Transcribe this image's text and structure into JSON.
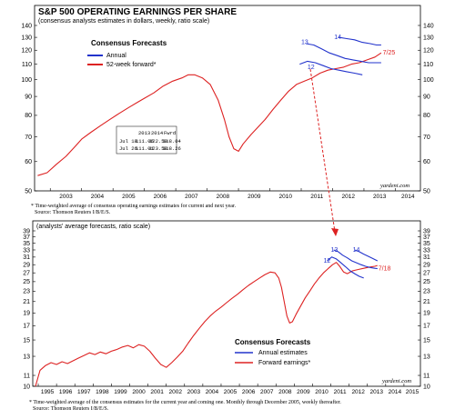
{
  "colors": {
    "annual": "#2233cc",
    "forward": "#dd2222",
    "arrow": "#dd2222",
    "frame": "#000000"
  },
  "top_chart": {
    "title": "S&P 500 OPERATING EARNINGS PER SHARE",
    "subtitle": "(consensus analysts estimates in dollars, weekly, ratio scale)",
    "legend_title": "Consensus Forecasts",
    "legend_annual": "Annual",
    "legend_forward": "52-week forward*",
    "credit": "yardeni.com",
    "table": {
      "header": [
        "2013",
        "2014",
        "Fwrd"
      ],
      "rows": [
        [
          "Jul 18",
          "111.06",
          "122.59",
          "118.04"
        ],
        [
          "Jul 26",
          "111.01",
          "123.58",
          "118.26"
        ]
      ]
    },
    "footnote_1": "* Time-weighted average of consensus operating earnings estimates for current and next year.",
    "footnote_2": "Source: Thomson Reuters I/B/E/S."
  },
  "bottom_chart": {
    "subtitle": "(analysts' average forecasts, ratio scale)",
    "legend_title": "Consensus Forecasts",
    "legend_annual": "Annual estimates",
    "legend_forward": "Forward earnings*",
    "credit": "yardeni.com",
    "footnote_1": "* Time-weighted average of the consensus estimates for the current year and coming one. Monthly through December 2005, weekly thereafter.",
    "footnote_2": "Source: Thomson Reuters I/B/E/S."
  },
  "chart_data": [
    {
      "type": "line",
      "title": "S&P 500 OPERATING EARNINGS PER SHARE",
      "subtitle": "(consensus analysts estimates in dollars, weekly, ratio scale)",
      "scale": "log",
      "xlim": [
        2002.5,
        2014.8
      ],
      "ylim": [
        50,
        140
      ],
      "y_ticks": [
        50,
        60,
        70,
        80,
        90,
        100,
        110,
        120,
        130,
        140
      ],
      "x_tick_labels": [
        "2003",
        "2004",
        "2005",
        "2006",
        "2007",
        "2008",
        "2009",
        "2010",
        "2011",
        "2012",
        "2013",
        "2014"
      ],
      "annotations": [
        {
          "text": "12",
          "series": "Annual",
          "x": 2011.2,
          "y": 108
        },
        {
          "text": "13",
          "series": "Annual",
          "x": 2011.0,
          "y": 126
        },
        {
          "text": "14",
          "series": "Annual",
          "x": 2012.05,
          "y": 130
        },
        {
          "text": "7/25",
          "series": "52-week forward*",
          "x": 2013.6,
          "y": 118
        }
      ],
      "series": [
        {
          "name": "52-week forward*",
          "color": "#dd2222",
          "points": [
            [
              2002.6,
              55
            ],
            [
              2002.9,
              56
            ],
            [
              2003.2,
              59
            ],
            [
              2003.5,
              62
            ],
            [
              2003.8,
              66
            ],
            [
              2004.0,
              69
            ],
            [
              2004.3,
              72
            ],
            [
              2004.6,
              75
            ],
            [
              2004.9,
              78
            ],
            [
              2005.2,
              81
            ],
            [
              2005.5,
              84
            ],
            [
              2005.8,
              87
            ],
            [
              2006.0,
              89
            ],
            [
              2006.3,
              92
            ],
            [
              2006.6,
              96
            ],
            [
              2006.9,
              99
            ],
            [
              2007.2,
              101
            ],
            [
              2007.4,
              103
            ],
            [
              2007.6,
              103
            ],
            [
              2007.85,
              101
            ],
            [
              2008.1,
              97
            ],
            [
              2008.35,
              88
            ],
            [
              2008.55,
              78
            ],
            [
              2008.7,
              70
            ],
            [
              2008.85,
              65
            ],
            [
              2009.0,
              64
            ],
            [
              2009.15,
              67
            ],
            [
              2009.4,
              71
            ],
            [
              2009.6,
              74
            ],
            [
              2009.85,
              78
            ],
            [
              2010.1,
              83
            ],
            [
              2010.35,
              88
            ],
            [
              2010.6,
              93
            ],
            [
              2010.85,
              97
            ],
            [
              2011.1,
              99
            ],
            [
              2011.35,
              101
            ],
            [
              2011.6,
              104
            ],
            [
              2011.85,
              106
            ],
            [
              2012.1,
              107
            ],
            [
              2012.35,
              108
            ],
            [
              2012.6,
              110
            ],
            [
              2012.85,
              111
            ],
            [
              2013.1,
              113
            ],
            [
              2013.35,
              115
            ],
            [
              2013.55,
              118
            ]
          ]
        },
        {
          "name": "Annual 2012",
          "color": "#2233cc",
          "points": [
            [
              2010.95,
              110
            ],
            [
              2011.2,
              112
            ],
            [
              2011.45,
              111
            ],
            [
              2011.7,
              109
            ],
            [
              2011.95,
              107
            ],
            [
              2012.2,
              106
            ],
            [
              2012.45,
              105
            ],
            [
              2012.7,
              104
            ],
            [
              2012.95,
              103
            ]
          ]
        },
        {
          "name": "Annual 2013",
          "color": "#2233cc",
          "points": [
            [
              2011.15,
              125
            ],
            [
              2011.4,
              124
            ],
            [
              2011.65,
              121
            ],
            [
              2011.9,
              118
            ],
            [
              2012.15,
              116
            ],
            [
              2012.4,
              114
            ],
            [
              2012.65,
              113
            ],
            [
              2012.9,
              112
            ],
            [
              2013.15,
              111
            ],
            [
              2013.4,
              111
            ],
            [
              2013.55,
              111
            ]
          ]
        },
        {
          "name": "Annual 2014",
          "color": "#2233cc",
          "points": [
            [
              2012.2,
              130
            ],
            [
              2012.45,
              129
            ],
            [
              2012.7,
              128
            ],
            [
              2012.95,
              126
            ],
            [
              2013.2,
              125
            ],
            [
              2013.4,
              124
            ],
            [
              2013.55,
              124
            ]
          ]
        }
      ]
    },
    {
      "type": "line",
      "subtitle": "(analysts' average forecasts, ratio scale)",
      "scale": "log",
      "xlim": [
        1994.7,
        2015.9
      ],
      "ylim": [
        10,
        39
      ],
      "y_ticks": [
        10,
        11,
        13,
        15,
        17,
        19,
        21,
        23,
        25,
        27,
        29,
        31,
        33,
        35,
        37,
        39
      ],
      "x_tick_labels": [
        "1995",
        "1996",
        "1997",
        "1998",
        "1999",
        "2000",
        "2001",
        "2002",
        "2003",
        "2004",
        "2005",
        "2006",
        "2007",
        "2008",
        "2009",
        "2010",
        "2011",
        "2012",
        "2013",
        "2014",
        "2015"
      ],
      "annotations": [
        {
          "text": "12",
          "series": "Annual estimates",
          "x": 2010.6,
          "y": 30
        },
        {
          "text": "13",
          "series": "Annual estimates",
          "x": 2011.0,
          "y": 33
        },
        {
          "text": "14",
          "series": "Annual estimates",
          "x": 2012.2,
          "y": 33
        },
        {
          "text": "7/18",
          "series": "Forward earnings*",
          "x": 2013.6,
          "y": 28
        }
      ],
      "series": [
        {
          "name": "Forward earnings*",
          "color": "#dd2222",
          "points": [
            [
              1994.85,
              10
            ],
            [
              1995.1,
              11.5
            ],
            [
              1995.4,
              12
            ],
            [
              1995.7,
              12.3
            ],
            [
              1996.0,
              12.1
            ],
            [
              1996.3,
              12.4
            ],
            [
              1996.6,
              12.2
            ],
            [
              1996.9,
              12.5
            ],
            [
              1997.2,
              12.8
            ],
            [
              1997.5,
              13.1
            ],
            [
              1997.8,
              13.4
            ],
            [
              1998.1,
              13.2
            ],
            [
              1998.4,
              13.5
            ],
            [
              1998.7,
              13.3
            ],
            [
              1999.0,
              13.6
            ],
            [
              1999.3,
              13.8
            ],
            [
              1999.6,
              14.1
            ],
            [
              1999.9,
              14.3
            ],
            [
              2000.2,
              14.0
            ],
            [
              2000.5,
              14.4
            ],
            [
              2000.8,
              14.2
            ],
            [
              2001.1,
              13.6
            ],
            [
              2001.4,
              12.8
            ],
            [
              2001.7,
              12.1
            ],
            [
              2002.0,
              11.8
            ],
            [
              2002.3,
              12.3
            ],
            [
              2002.6,
              12.9
            ],
            [
              2002.9,
              13.6
            ],
            [
              2003.2,
              14.6
            ],
            [
              2003.5,
              15.6
            ],
            [
              2003.8,
              16.6
            ],
            [
              2004.1,
              17.6
            ],
            [
              2004.4,
              18.5
            ],
            [
              2004.7,
              19.3
            ],
            [
              2005.0,
              20.0
            ],
            [
              2005.3,
              20.8
            ],
            [
              2005.6,
              21.6
            ],
            [
              2005.9,
              22.4
            ],
            [
              2006.2,
              23.3
            ],
            [
              2006.5,
              24.2
            ],
            [
              2006.8,
              25.0
            ],
            [
              2007.1,
              25.8
            ],
            [
              2007.4,
              26.6
            ],
            [
              2007.7,
              27.2
            ],
            [
              2007.95,
              27.0
            ],
            [
              2008.15,
              25.8
            ],
            [
              2008.3,
              23.8
            ],
            [
              2008.45,
              21.0
            ],
            [
              2008.6,
              18.5
            ],
            [
              2008.75,
              17.4
            ],
            [
              2008.9,
              17.6
            ],
            [
              2009.1,
              18.8
            ],
            [
              2009.35,
              20.2
            ],
            [
              2009.6,
              21.7
            ],
            [
              2009.85,
              23.0
            ],
            [
              2010.1,
              24.5
            ],
            [
              2010.35,
              25.8
            ],
            [
              2010.6,
              27.0
            ],
            [
              2010.85,
              28.0
            ],
            [
              2011.1,
              29.0
            ],
            [
              2011.3,
              29.6
            ],
            [
              2011.5,
              28.5
            ],
            [
              2011.7,
              27.2
            ],
            [
              2011.9,
              26.8
            ],
            [
              2012.2,
              27.5
            ],
            [
              2012.5,
              27.8
            ],
            [
              2012.8,
              28.1
            ],
            [
              2013.1,
              28.4
            ],
            [
              2013.4,
              28.6
            ],
            [
              2013.55,
              28.8
            ]
          ]
        },
        {
          "name": "Annual estimates 12",
          "color": "#2233cc",
          "points": [
            [
              2010.8,
              30
            ],
            [
              2011.05,
              31
            ],
            [
              2011.3,
              30.5
            ],
            [
              2011.55,
              29.5
            ],
            [
              2011.8,
              28.5
            ],
            [
              2012.05,
              27.5
            ],
            [
              2012.3,
              26.8
            ],
            [
              2012.55,
              26.2
            ],
            [
              2012.8,
              25.8
            ]
          ]
        },
        {
          "name": "Annual estimates 13",
          "color": "#2233cc",
          "points": [
            [
              2011.15,
              33
            ],
            [
              2011.4,
              32.5
            ],
            [
              2011.65,
              31.5
            ],
            [
              2011.9,
              30.8
            ],
            [
              2012.15,
              30.0
            ],
            [
              2012.4,
              29.5
            ],
            [
              2012.65,
              29.0
            ],
            [
              2012.9,
              28.6
            ],
            [
              2013.15,
              28.3
            ],
            [
              2013.4,
              28.1
            ],
            [
              2013.55,
              28.0
            ]
          ]
        },
        {
          "name": "Annual estimates 14",
          "color": "#2233cc",
          "points": [
            [
              2012.3,
              33
            ],
            [
              2012.55,
              32.5
            ],
            [
              2012.8,
              31.8
            ],
            [
              2013.05,
              31.2
            ],
            [
              2013.3,
              30.6
            ],
            [
              2013.55,
              30.0
            ]
          ]
        }
      ]
    }
  ]
}
